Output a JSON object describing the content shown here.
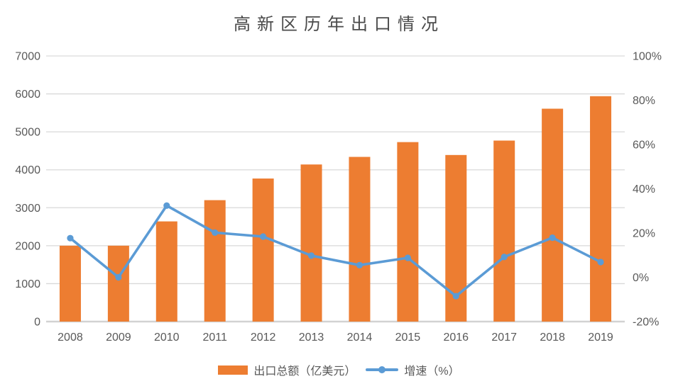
{
  "title": "高新区历年出口情况",
  "colors": {
    "bar": "#ED7D31",
    "line": "#5B9BD5",
    "grid": "#D9D9D9",
    "axis_line": "#D2D2D2",
    "tick_text": "#595959",
    "title_text": "#4A4A4A",
    "background": "#FFFFFF"
  },
  "chart_data": {
    "type": "combo",
    "title": "高新区历年出口情况",
    "categories": [
      "2008",
      "2009",
      "2010",
      "2011",
      "2012",
      "2013",
      "2014",
      "2015",
      "2016",
      "2017",
      "2018",
      "2019"
    ],
    "series": [
      {
        "name": "出口总额（亿美元）",
        "type": "bar",
        "axis": "left",
        "color": "#ED7D31",
        "values": [
          2000,
          2000,
          2640,
          3200,
          3770,
          4140,
          4340,
          4730,
          4390,
          4770,
          5610,
          5940
        ]
      },
      {
        "name": "增速（%）",
        "type": "line",
        "axis": "right",
        "color": "#5B9BD5",
        "values": [
          17.7,
          0,
          32.4,
          20.2,
          18.4,
          9.8,
          5.5,
          8.8,
          -8.5,
          9.2,
          17.9,
          6.9
        ]
      }
    ],
    "left_axis": {
      "min": 0,
      "max": 7000,
      "step": 1000,
      "ticks": [
        {
          "value": 0,
          "label": "0"
        },
        {
          "value": 1000,
          "label": "1000"
        },
        {
          "value": 2000,
          "label": "2000"
        },
        {
          "value": 3000,
          "label": "3000"
        },
        {
          "value": 4000,
          "label": "4000"
        },
        {
          "value": 5000,
          "label": "5000"
        },
        {
          "value": 6000,
          "label": "6000"
        },
        {
          "value": 7000,
          "label": "7000"
        }
      ]
    },
    "right_axis": {
      "min": -20,
      "max": 100,
      "step": 20,
      "ticks": [
        {
          "value": -20,
          "label": "-20%"
        },
        {
          "value": 0,
          "label": "0%"
        },
        {
          "value": 20,
          "label": "20%"
        },
        {
          "value": 40,
          "label": "40%"
        },
        {
          "value": 60,
          "label": "60%"
        },
        {
          "value": 80,
          "label": "80%"
        },
        {
          "value": 100,
          "label": "100%"
        }
      ]
    },
    "grid": true,
    "legend_position": "bottom"
  },
  "legend": {
    "items": [
      {
        "label": "出口总额（亿美元）",
        "swatch": "bar",
        "color": "#ED7D31"
      },
      {
        "label": "增速（%）",
        "swatch": "line-marker",
        "color": "#5B9BD5"
      }
    ]
  }
}
